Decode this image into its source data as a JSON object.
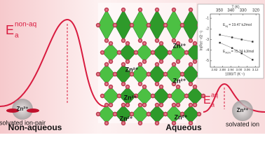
{
  "left": {
    "energy": {
      "symbol": "E",
      "sub": "a",
      "sup": "non-aq"
    },
    "ion": "Zn²⁺",
    "species": "solvated ion-pair",
    "phase": "Non-aqueous"
  },
  "right": {
    "energy": {
      "symbol": "E",
      "sub": "a",
      "sup": "aq"
    },
    "ion": "Zn²⁺",
    "species": "solvated ion",
    "phase": "Aqueous"
  },
  "crystal": {
    "ions": [
      "Zn²⁺",
      "Zn²⁺",
      "Zn²⁺",
      "Zn²⁺",
      "Zn²⁺",
      "Zn²⁺"
    ]
  },
  "inset": {
    "chart_data": {
      "type": "scatter",
      "x_label": "1000/T (K⁻¹)",
      "y_label": "ln(Rct⁻¹/Ω⁻¹)",
      "top_label": "T (K)",
      "xlim": [
        2.79,
        3.15
      ],
      "ylim": [
        -5.6,
        -0.6
      ],
      "xticks": [
        2.82,
        2.88,
        2.94,
        {
          "value": 3.0,
          "label": "3.00"
        },
        3.06,
        3.12
      ],
      "yticks": [
        -1,
        -2,
        -3,
        -4,
        -5
      ],
      "top_ticks": [
        350,
        340,
        330,
        320
      ],
      "series": [
        {
          "name": "aq",
          "color": "#333333",
          "x": [
            2.86,
            2.95,
            3.02,
            3.1
          ],
          "values": [
            -2.55,
            -2.8,
            -3.0,
            -3.2
          ],
          "annotation": {
            "symbol": "E",
            "sub": "aq",
            "text": "= 19.47 kJ/mol"
          }
        },
        {
          "name": "ACN",
          "color": "#333333",
          "x": [
            2.86,
            2.95,
            3.02,
            3.1
          ],
          "values": [
            -3.3,
            -3.8,
            -4.3,
            -4.9
          ],
          "annotation": {
            "symbol": "E",
            "sub": "ACN",
            "text": "= 75.34 kJ/mol"
          }
        }
      ]
    }
  }
}
